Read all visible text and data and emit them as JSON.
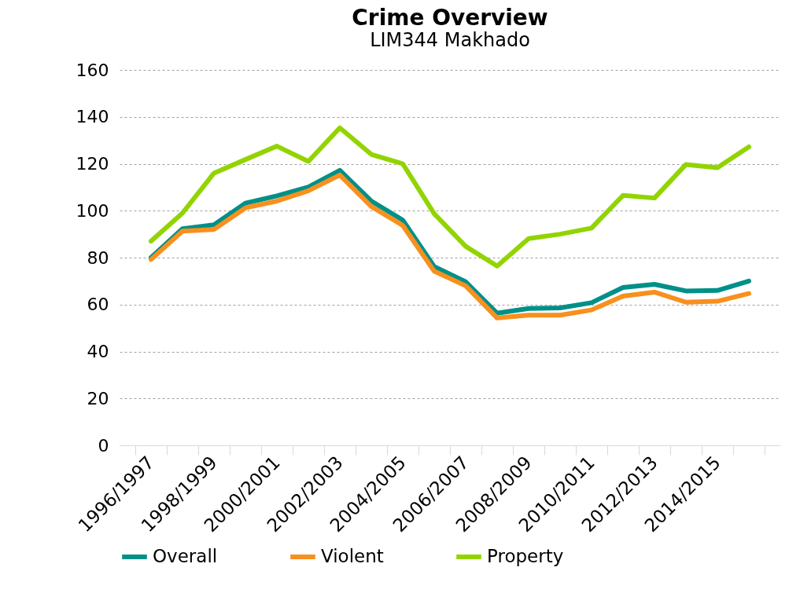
{
  "chart_data": {
    "type": "line",
    "title": "Crime Overview",
    "subtitle": "LIM344 Makhado",
    "categories": [
      "1996/1997",
      null,
      "1998/1999",
      null,
      "2000/2001",
      null,
      "2002/2003",
      null,
      "2004/2005",
      null,
      "2006/2007",
      null,
      "2008/2009",
      null,
      "2010/2011",
      null,
      "2012/2013",
      null,
      "2014/2015",
      null
    ],
    "series": [
      {
        "name": "Overall",
        "color": "#009088",
        "values": [
          80,
          92.3,
          94,
          103.2,
          106.3,
          110.1,
          117.2,
          104.1,
          96,
          76.2,
          69.7,
          56.3,
          58.3,
          58.6,
          60.8,
          67.3,
          68.6,
          65.8,
          66,
          70
        ]
      },
      {
        "name": "Violent",
        "color": "#f7901e",
        "values": [
          79.2,
          91.3,
          92,
          101.2,
          104.1,
          108.5,
          115.2,
          101.8,
          93.7,
          74.2,
          68,
          54.3,
          55.5,
          55.5,
          57.7,
          63.6,
          65.3,
          61,
          61.4,
          64.7
        ]
      },
      {
        "name": "Property",
        "color": "#92d400",
        "values": [
          87,
          99,
          116,
          121.8,
          127.5,
          121,
          135.3,
          124,
          120,
          98.7,
          84.8,
          76.4,
          88.1,
          90,
          92.6,
          106.5,
          105.4,
          119.7,
          118.3,
          127.2
        ]
      }
    ],
    "ylim": [
      0,
      160
    ],
    "yticks": [
      0,
      20,
      40,
      60,
      80,
      100,
      120,
      140,
      160
    ],
    "grid": "y",
    "legend": "bottom",
    "line_style": "solid",
    "marker": "none"
  }
}
